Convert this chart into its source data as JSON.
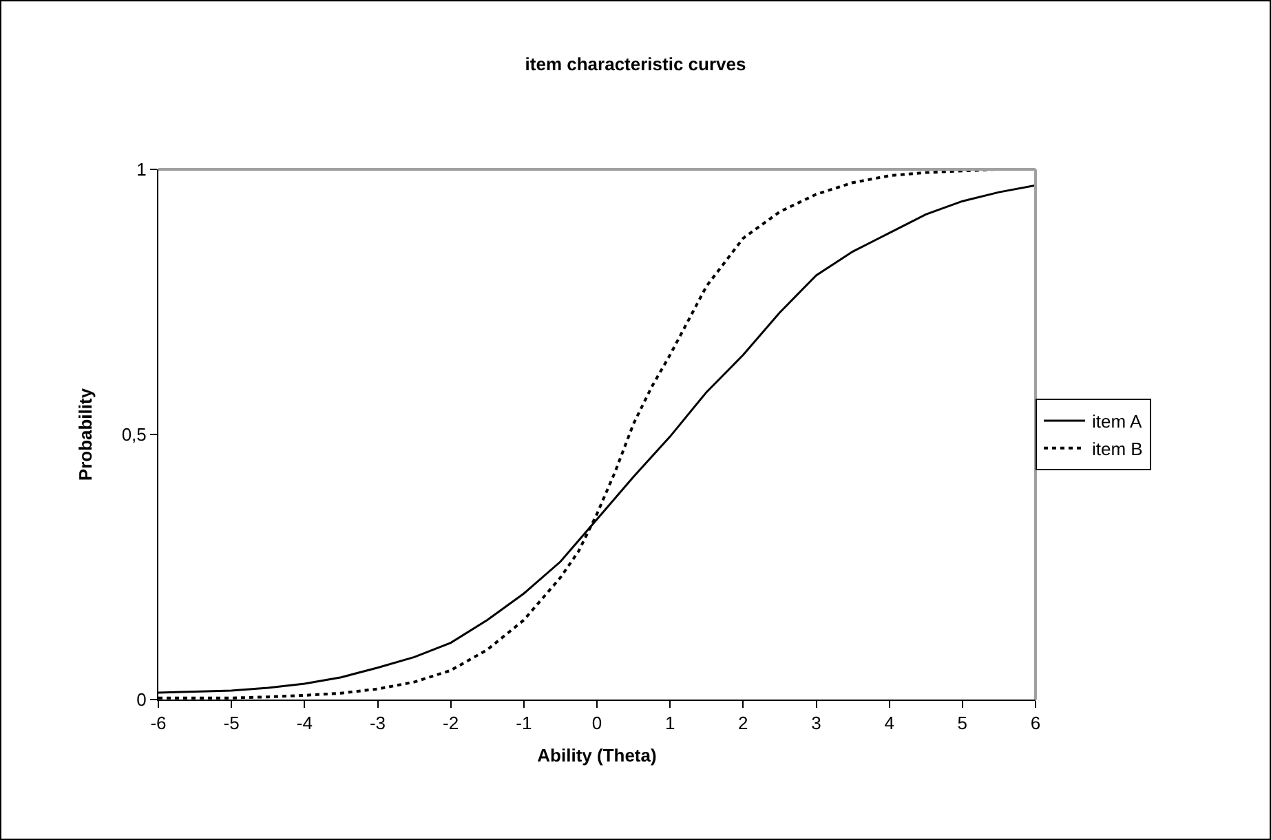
{
  "chart_data": {
    "type": "line",
    "title": "item characteristic curves",
    "xlabel": "Ability (Theta)",
    "ylabel": "Probability",
    "xlim": [
      -6,
      6
    ],
    "xticks": [
      -6,
      -5,
      -4,
      -3,
      -2,
      -1,
      0,
      1,
      2,
      3,
      4,
      5,
      6
    ],
    "ylim": [
      0,
      1
    ],
    "yticks": [
      0,
      {
        "value": 0.5,
        "label": "0,5"
      },
      1
    ],
    "grid": false,
    "legend": "right",
    "marker": "none",
    "series": [
      {
        "name": "item A",
        "color": "#000000",
        "line_style": "solid",
        "x": [
          -6,
          -5.5,
          -5,
          -4.5,
          -4,
          -3.5,
          -3,
          -2.5,
          -2,
          -1.5,
          -1,
          -0.5,
          -0.25,
          0,
          0.5,
          1,
          1.5,
          2,
          2.5,
          3,
          3.5,
          4,
          4.5,
          5,
          5.5,
          6
        ],
        "values": [
          0.013,
          0.015,
          0.017,
          0.022,
          0.03,
          0.042,
          0.06,
          0.08,
          0.107,
          0.15,
          0.2,
          0.26,
          0.3,
          0.34,
          0.42,
          0.496,
          0.58,
          0.65,
          0.73,
          0.8,
          0.845,
          0.88,
          0.915,
          0.94,
          0.957,
          0.97
        ]
      },
      {
        "name": "item B",
        "color": "#000000",
        "line_style": "dotted",
        "x": [
          -6,
          -5,
          -4.5,
          -4,
          -3.5,
          -3,
          -2.5,
          -2,
          -1.5,
          -1,
          -0.5,
          -0.25,
          0,
          0.25,
          0.5,
          0.75,
          1,
          1.5,
          2,
          2.5,
          3,
          3.5,
          4,
          4.5,
          5,
          5.45
        ],
        "values": [
          0.003,
          0.003,
          0.005,
          0.008,
          0.012,
          0.02,
          0.033,
          0.055,
          0.094,
          0.15,
          0.23,
          0.28,
          0.35,
          0.43,
          0.52,
          0.59,
          0.65,
          0.78,
          0.87,
          0.92,
          0.953,
          0.975,
          0.988,
          0.994,
          0.997,
          1
        ]
      }
    ]
  }
}
